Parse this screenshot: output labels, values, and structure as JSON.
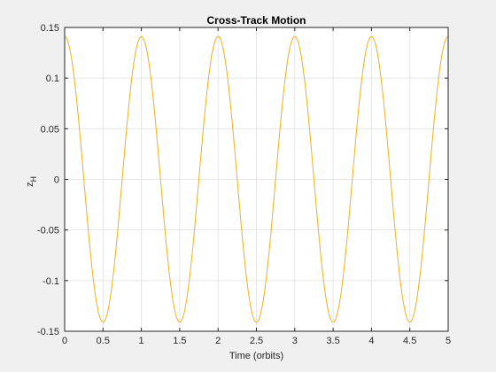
{
  "chart_data": {
    "type": "line",
    "title": "Cross-Track Motion",
    "xlabel": "Time (orbits)",
    "ylabel": "z",
    "ylabel_subscript": "H",
    "xlim": [
      0,
      5
    ],
    "ylim": [
      -0.15,
      0.15
    ],
    "xticks": [
      0,
      0.5,
      1,
      1.5,
      2,
      2.5,
      3,
      3.5,
      4,
      4.5,
      5
    ],
    "xtick_labels": [
      "0",
      "0.5",
      "1",
      "1.5",
      "2",
      "2.5",
      "3",
      "3.5",
      "4",
      "4.5",
      "5"
    ],
    "yticks": [
      0.15,
      0.1,
      0.05,
      0,
      -0.05,
      -0.1,
      -0.15
    ],
    "ytick_labels": [
      "0.15",
      "0.1",
      "0.05",
      "0",
      "-0.05",
      "-0.1",
      "-0.15"
    ],
    "grid": true,
    "series": [
      {
        "color": "#edb120",
        "function": "z_H = 0.141 * cos(2*pi*t)",
        "amplitude": 0.141,
        "period": 1,
        "x": [
          0,
          0.25,
          0.5,
          0.75,
          1,
          1.25,
          1.5,
          1.75,
          2,
          2.25,
          2.5,
          2.75,
          3,
          3.25,
          3.5,
          3.75,
          4,
          4.25,
          4.5,
          4.75,
          5
        ],
        "y": [
          0.141,
          0,
          -0.141,
          0,
          0.141,
          0,
          -0.141,
          0,
          0.141,
          0,
          -0.141,
          0,
          0.141,
          0,
          -0.141,
          0,
          0.141,
          0,
          -0.141,
          0,
          0.141
        ]
      }
    ]
  },
  "colors": {
    "background": "#f0f0f0",
    "axes_background": "#ffffff",
    "axis_line": "#262626",
    "grid": "#e6e6e6",
    "series": "#edb120"
  }
}
